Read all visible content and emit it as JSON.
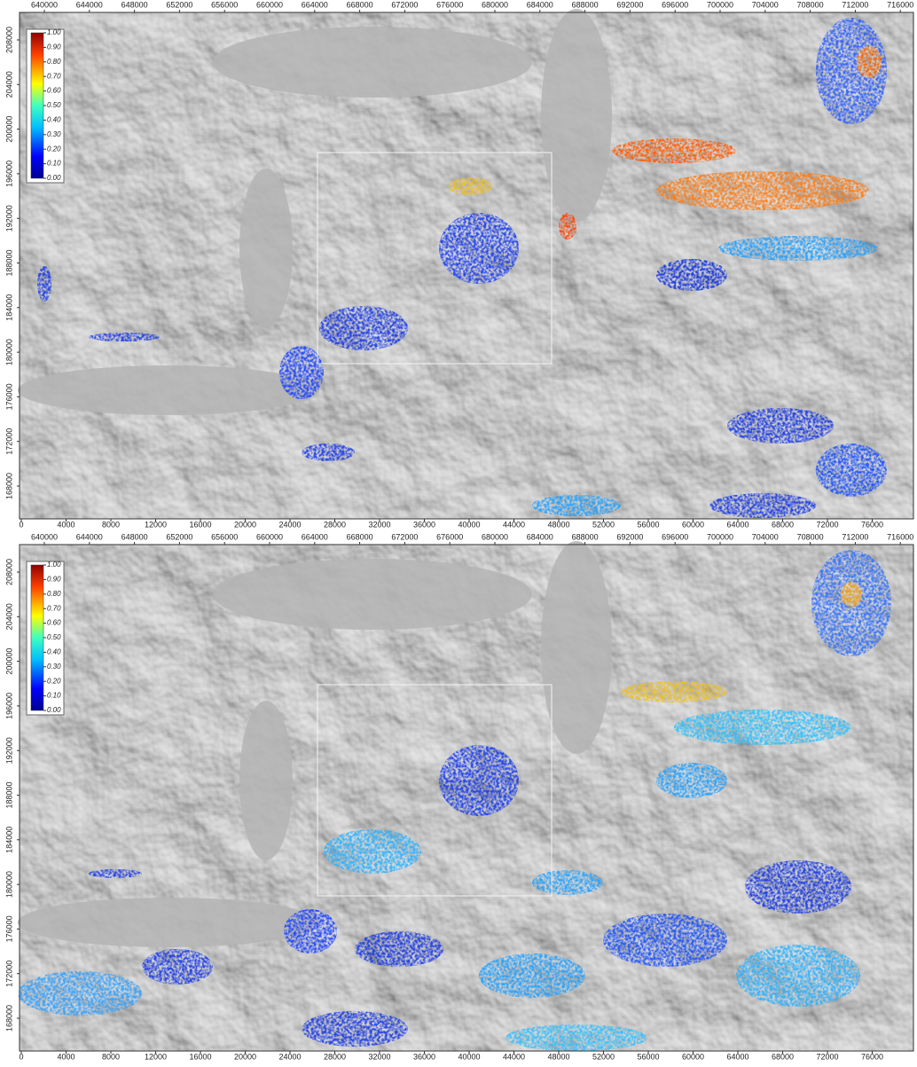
{
  "map": {
    "top_axis_labels": [
      "640000",
      "644000",
      "648000",
      "652000",
      "656000",
      "660000",
      "664000",
      "668000",
      "672000",
      "676000",
      "680000",
      "684000",
      "688000",
      "692000",
      "696000",
      "700000",
      "704000",
      "708000",
      "712000",
      "716000"
    ],
    "bottom_axis_labels": [
      "0",
      "4000",
      "8000",
      "12000",
      "16000",
      "20000",
      "24000",
      "28000",
      "32000",
      "36000",
      "40000",
      "44000",
      "48000",
      "52000",
      "56000",
      "60000",
      "64000",
      "68000",
      "72000",
      "76000"
    ],
    "left_axis_labels": [
      "208000",
      "204000",
      "200000",
      "196000",
      "192000",
      "188000",
      "184000",
      "180000",
      "176000",
      "172000",
      "168000"
    ],
    "legend_labels": [
      "1.00",
      "0.90",
      "0.80",
      "0.70",
      "0.60",
      "0.50",
      "0.40",
      "0.30",
      "0.20",
      "0.10",
      "0.00"
    ]
  }
}
